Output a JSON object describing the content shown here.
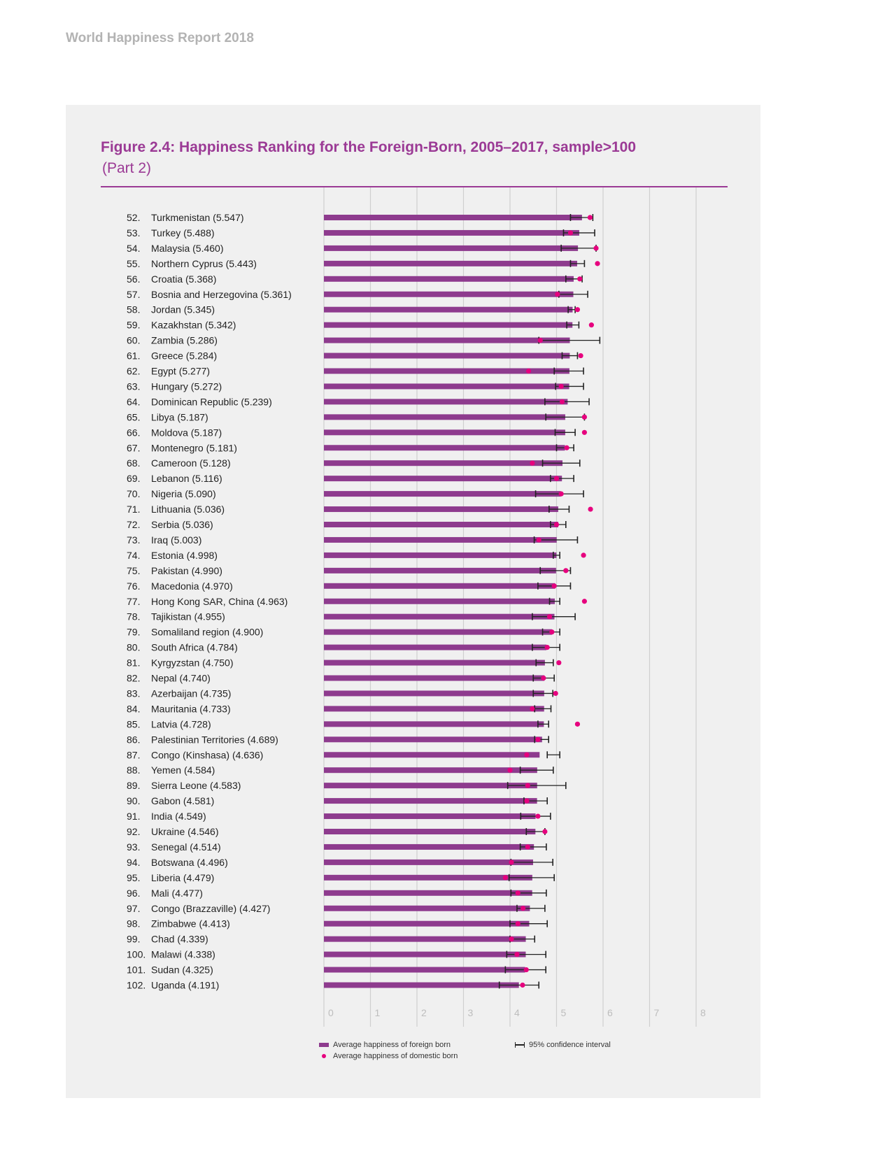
{
  "header": {
    "report": "World Happiness Report 2018"
  },
  "figure": {
    "title": "Figure 2.4: Happiness Ranking for the Foreign-Born, 2005–2017, sample>100",
    "subtitle": "(Part 2)"
  },
  "legend": {
    "foreign": "Average happiness of foreign born",
    "domestic": "Average happiness of domestic born",
    "ci": "95% confidence interval"
  },
  "colors": {
    "bar": "#8e3b8e",
    "dot": "#e6007e",
    "ci": "#222222",
    "title": "#9b3a95",
    "grid": "#cfcfcf",
    "tick": "#bdbdbd"
  },
  "chart_data": {
    "type": "bar",
    "orientation": "horizontal",
    "xlim": [
      0,
      8
    ],
    "xticks": [
      "0",
      "1",
      "2",
      "3",
      "4",
      "5",
      "6",
      "7",
      "8"
    ],
    "grid": true,
    "categories": [
      {
        "rank": "52.",
        "label": "Turkmenistan (5.547)"
      },
      {
        "rank": "53.",
        "label": "Turkey (5.488)"
      },
      {
        "rank": "54.",
        "label": "Malaysia (5.460)"
      },
      {
        "rank": "55.",
        "label": "Northern Cyprus (5.443)"
      },
      {
        "rank": "56.",
        "label": "Croatia (5.368)"
      },
      {
        "rank": "57.",
        "label": "Bosnia and Herzegovina (5.361)"
      },
      {
        "rank": "58.",
        "label": "Jordan (5.345)"
      },
      {
        "rank": "59.",
        "label": "Kazakhstan (5.342)"
      },
      {
        "rank": "60.",
        "label": "Zambia (5.286)"
      },
      {
        "rank": "61.",
        "label": "Greece (5.284)"
      },
      {
        "rank": "62.",
        "label": "Egypt (5.277)"
      },
      {
        "rank": "63.",
        "label": "Hungary (5.272)"
      },
      {
        "rank": "64.",
        "label": "Dominican Republic (5.239)"
      },
      {
        "rank": "65.",
        "label": "Libya (5.187)"
      },
      {
        "rank": "66.",
        "label": "Moldova (5.187)"
      },
      {
        "rank": "67.",
        "label": "Montenegro (5.181)"
      },
      {
        "rank": "68.",
        "label": "Cameroon (5.128)"
      },
      {
        "rank": "69.",
        "label": "Lebanon (5.116)"
      },
      {
        "rank": "70.",
        "label": "Nigeria (5.090)"
      },
      {
        "rank": "71.",
        "label": "Lithuania (5.036)"
      },
      {
        "rank": "72.",
        "label": "Serbia (5.036)"
      },
      {
        "rank": "73.",
        "label": "Iraq (5.003)"
      },
      {
        "rank": "74.",
        "label": "Estonia (4.998)"
      },
      {
        "rank": "75.",
        "label": "Pakistan (4.990)"
      },
      {
        "rank": "76.",
        "label": "Macedonia (4.970)"
      },
      {
        "rank": "77.",
        "label": "Hong Kong SAR, China (4.963)"
      },
      {
        "rank": "78.",
        "label": "Tajikistan (4.955)"
      },
      {
        "rank": "79.",
        "label": "Somaliland region (4.900)"
      },
      {
        "rank": "80.",
        "label": "South Africa (4.784)"
      },
      {
        "rank": "81.",
        "label": "Kyrgyzstan (4.750)"
      },
      {
        "rank": "82.",
        "label": "Nepal (4.740)"
      },
      {
        "rank": "83.",
        "label": "Azerbaijan (4.735)"
      },
      {
        "rank": "84.",
        "label": "Mauritania (4.733)"
      },
      {
        "rank": "85.",
        "label": "Latvia (4.728)"
      },
      {
        "rank": "86.",
        "label": "Palestinian Territories (4.689)"
      },
      {
        "rank": "87.",
        "label": "Congo (Kinshasa) (4.636)"
      },
      {
        "rank": "88.",
        "label": "Yemen (4.584)"
      },
      {
        "rank": "89.",
        "label": "Sierra Leone (4.583)"
      },
      {
        "rank": "90.",
        "label": "Gabon (4.581)"
      },
      {
        "rank": "91.",
        "label": "India (4.549)"
      },
      {
        "rank": "92.",
        "label": "Ukraine (4.546)"
      },
      {
        "rank": "93.",
        "label": "Senegal (4.514)"
      },
      {
        "rank": "94.",
        "label": "Botswana (4.496)"
      },
      {
        "rank": "95.",
        "label": "Liberia (4.479)"
      },
      {
        "rank": "96.",
        "label": "Mali (4.477)"
      },
      {
        "rank": "97.",
        "label": "Congo (Brazzaville) (4.427)"
      },
      {
        "rank": "98.",
        "label": "Zimbabwe (4.413)"
      },
      {
        "rank": "99.",
        "label": "Chad (4.339)"
      },
      {
        "rank": "100.",
        "label": "Malawi (4.338)"
      },
      {
        "rank": "101.",
        "label": "Sudan (4.325)"
      },
      {
        "rank": "102.",
        "label": "Uganda (4.191)"
      }
    ],
    "series": [
      {
        "name": "Average happiness of foreign born",
        "values": [
          5.547,
          5.488,
          5.46,
          5.443,
          5.368,
          5.361,
          5.345,
          5.342,
          5.286,
          5.284,
          5.277,
          5.272,
          5.239,
          5.187,
          5.187,
          5.181,
          5.128,
          5.116,
          5.09,
          5.036,
          5.036,
          5.003,
          4.998,
          4.99,
          4.97,
          4.963,
          4.955,
          4.9,
          4.784,
          4.75,
          4.74,
          4.735,
          4.733,
          4.728,
          4.689,
          4.636,
          4.584,
          4.583,
          4.581,
          4.549,
          4.546,
          4.514,
          4.496,
          4.479,
          4.477,
          4.427,
          4.413,
          4.339,
          4.338,
          4.325,
          4.191
        ]
      },
      {
        "name": "Average happiness of domestic born",
        "values": [
          5.72,
          5.3,
          5.85,
          5.88,
          5.5,
          5.02,
          5.45,
          5.75,
          4.65,
          5.52,
          4.4,
          5.1,
          5.12,
          5.6,
          5.6,
          5.22,
          4.48,
          5.0,
          5.1,
          5.73,
          5.0,
          4.62,
          5.58,
          5.2,
          4.95,
          5.6,
          4.85,
          4.9,
          4.8,
          5.05,
          4.72,
          4.98,
          4.48,
          5.45,
          4.6,
          4.36,
          4.0,
          4.38,
          4.36,
          4.6,
          4.75,
          4.38,
          4.03,
          3.9,
          4.17,
          4.28,
          4.17,
          4.03,
          4.15,
          4.35,
          4.27
        ]
      },
      {
        "name": "95% confidence interval",
        "lower": [
          5.3,
          5.15,
          5.1,
          5.3,
          5.2,
          5.05,
          5.25,
          5.22,
          4.62,
          5.12,
          4.95,
          4.98,
          4.75,
          4.77,
          4.97,
          5.0,
          4.7,
          4.87,
          4.55,
          4.84,
          4.87,
          4.52,
          4.93,
          4.65,
          4.6,
          4.85,
          4.48,
          4.7,
          4.48,
          4.56,
          4.5,
          4.5,
          4.53,
          4.6,
          4.53,
          4.8,
          4.22,
          3.95,
          4.3,
          4.23,
          4.35,
          4.22,
          4.02,
          3.98,
          4.02,
          4.15,
          4.0,
          4.0,
          3.93,
          3.9,
          3.77
        ],
        "upper": [
          5.78,
          5.82,
          5.85,
          5.6,
          5.55,
          5.67,
          5.4,
          5.48,
          5.93,
          5.45,
          5.58,
          5.58,
          5.7,
          5.6,
          5.4,
          5.37,
          5.5,
          5.37,
          5.58,
          5.27,
          5.2,
          5.45,
          5.07,
          5.3,
          5.3,
          5.07,
          5.4,
          5.07,
          5.07,
          4.93,
          4.95,
          4.92,
          4.88,
          4.83,
          4.83,
          5.07,
          4.93,
          5.2,
          4.8,
          4.87,
          4.75,
          4.78,
          4.92,
          4.95,
          4.78,
          4.75,
          4.8,
          4.53,
          4.77,
          4.77,
          4.62
        ]
      }
    ]
  }
}
